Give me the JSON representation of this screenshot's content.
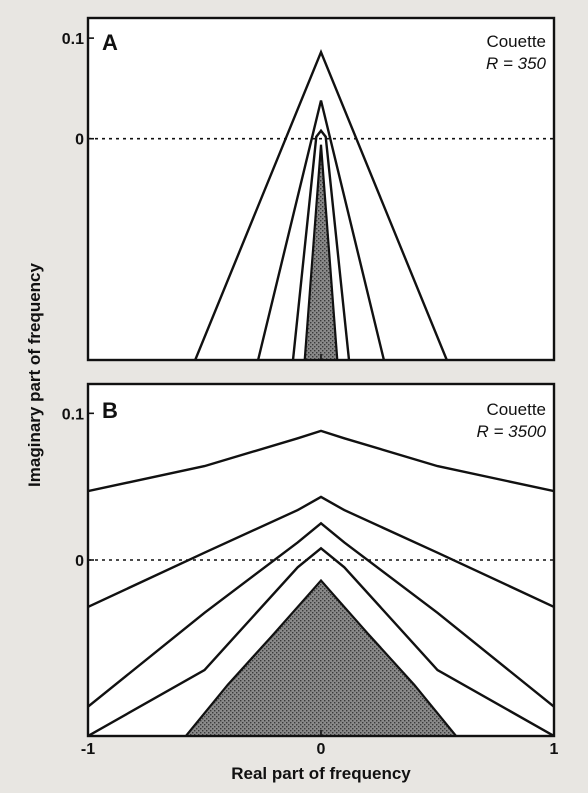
{
  "chart_data": [
    {
      "type": "line",
      "panel_label": "A",
      "annotation": {
        "line1": "Couette",
        "line2": "R = 350"
      },
      "xlim": [
        -1,
        1
      ],
      "ylim": [
        -0.22,
        0.12
      ],
      "y_ticks": [
        {
          "value": 0.1,
          "label": "0.1"
        },
        {
          "value": 0,
          "label": "0"
        }
      ],
      "zero_dotted": true,
      "series": [
        {
          "x": [
            -0.54,
            0,
            0.54
          ],
          "y": [
            -0.22,
            0.086,
            -0.22
          ]
        },
        {
          "x": [
            -0.27,
            0,
            0.27
          ],
          "y": [
            -0.22,
            0.038,
            -0.22
          ]
        },
        {
          "x": [
            -0.12,
            -0.02,
            0,
            0.02,
            0.12
          ],
          "y": [
            -0.22,
            0.002,
            0.008,
            0.002,
            -0.22
          ]
        },
        {
          "x": [
            -0.07,
            0,
            0.07
          ],
          "y": [
            -0.22,
            -0.006,
            -0.22
          ],
          "filled": true
        }
      ]
    },
    {
      "type": "line",
      "panel_label": "B",
      "annotation": {
        "line1": "Couette",
        "line2": "R = 3500"
      },
      "xlim": [
        -1,
        1
      ],
      "ylim": [
        -0.12,
        0.12
      ],
      "y_ticks": [
        {
          "value": 0.1,
          "label": "0.1"
        },
        {
          "value": 0,
          "label": "0"
        }
      ],
      "zero_dotted": true,
      "series": [
        {
          "x": [
            -1,
            -0.5,
            -0.1,
            0,
            0.1,
            0.5,
            1
          ],
          "y": [
            0.047,
            0.064,
            0.083,
            0.088,
            0.083,
            0.064,
            0.047
          ]
        },
        {
          "x": [
            -1,
            -0.5,
            -0.1,
            0,
            0.1,
            0.5,
            1
          ],
          "y": [
            -0.032,
            0.005,
            0.034,
            0.043,
            0.034,
            0.005,
            -0.032
          ]
        },
        {
          "x": [
            -1,
            -0.5,
            -0.1,
            0,
            0.1,
            0.5,
            1
          ],
          "y": [
            -0.1,
            -0.036,
            0.012,
            0.025,
            0.012,
            -0.036,
            -0.1
          ]
        },
        {
          "x": [
            -1,
            -0.5,
            -0.1,
            0,
            0.1,
            0.5,
            1
          ],
          "y": [
            -0.12,
            -0.075,
            -0.005,
            0.008,
            -0.005,
            -0.075,
            -0.12
          ]
        },
        {
          "x": [
            -0.58,
            -0.4,
            -0.2,
            -0.05,
            0,
            0.05,
            0.2,
            0.4,
            0.58
          ],
          "y": [
            -0.12,
            -0.085,
            -0.05,
            -0.023,
            -0.014,
            -0.023,
            -0.05,
            -0.085,
            -0.12
          ],
          "filled": true
        }
      ]
    }
  ],
  "x_ticks": [
    {
      "value": -1,
      "label": "-1"
    },
    {
      "value": 0,
      "label": "0"
    },
    {
      "value": 1,
      "label": "1"
    }
  ],
  "xlabel": "Real part of frequency",
  "ylabel": "Imaginary part of frequency"
}
